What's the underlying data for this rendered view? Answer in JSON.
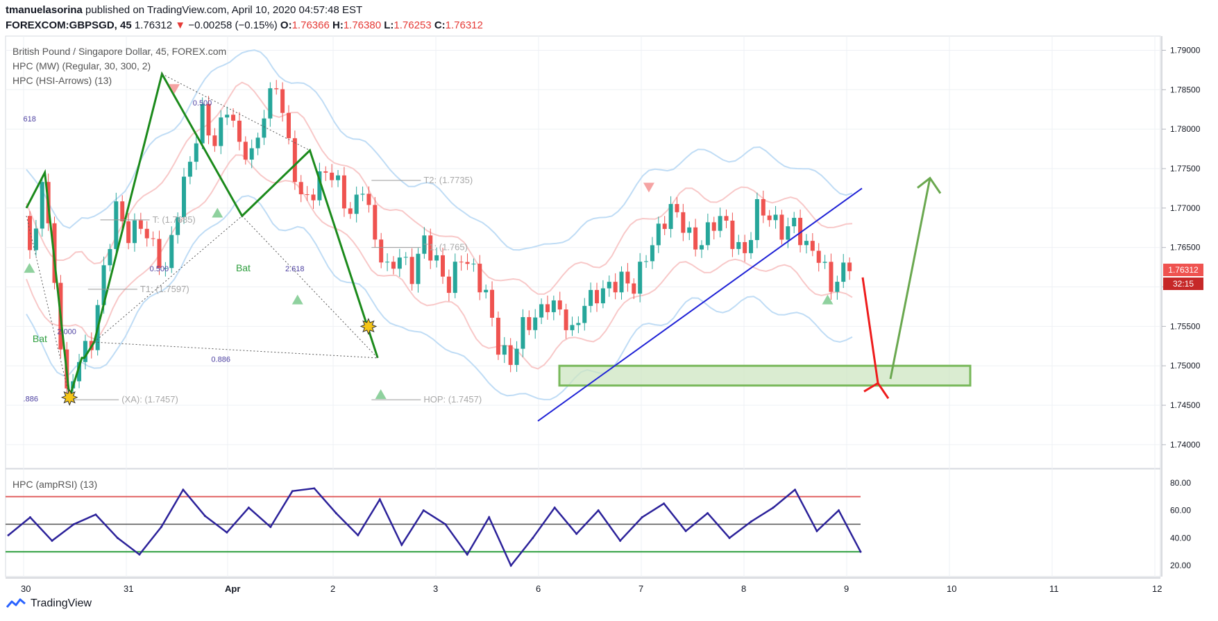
{
  "header": {
    "author": "tmanuelasorina",
    "published_text": "published on TradingView.com, April 10, 2020 04:57:48 EST",
    "symbol": "FOREXCOM:GBPSGD, 45",
    "last": "1.76312",
    "change_arrow": "▼",
    "change": "−0.00258 (−0.15%)",
    "o_label": "O:",
    "o": "1.76366",
    "h_label": "H:",
    "h": "1.76380",
    "l_label": "L:",
    "l": "1.76253",
    "c_label": "C:",
    "c": "1.76312"
  },
  "legend": {
    "line1": "British Pound / Singapore Dollar, 45, FOREX.com",
    "line2": "HPC (MW) (Regular, 30, 300, 2)",
    "line3": "HPC (HSI-Arrows) (13)",
    "rsi": "HPC (ampRSI) (13)"
  },
  "price_tag": {
    "price": "1.76312",
    "countdown": "32:15"
  },
  "footer": {
    "brand": "TradingView"
  },
  "colors": {
    "up": "#26a69a",
    "down": "#ef5350",
    "pattern": "#1b8a1b",
    "trendline": "#1f22d6",
    "zone": "#78b85a",
    "forecast_down": "#ee1c1c",
    "forecast_up": "#6aa84f",
    "rsi_line": "#2c229a"
  },
  "chart_data": [
    {
      "type": "candlestick",
      "title": "British Pound / Singapore Dollar, 45, FOREX.com",
      "x_tick_labels": [
        "30",
        "31",
        "Apr",
        "2",
        "3",
        "6",
        "7",
        "8",
        "9",
        "10",
        "11",
        "12"
      ],
      "y_tick_labels": [
        "1.79000",
        "1.78500",
        "1.78000",
        "1.77500",
        "1.77000",
        "1.76500",
        "1.76000",
        "1.75500",
        "1.75000",
        "1.74500",
        "1.74000"
      ],
      "ylim": [
        1.737,
        1.7918
      ],
      "close_path": [
        [
          0,
          1.769
        ],
        [
          1.5,
          1.7625
        ],
        [
          3,
          1.7745
        ],
        [
          7,
          1.746
        ],
        [
          9,
          1.751
        ],
        [
          11,
          1.753
        ],
        [
          13,
          1.762
        ],
        [
          15,
          1.77
        ],
        [
          17,
          1.7665
        ],
        [
          19,
          1.768
        ],
        [
          21,
          1.765
        ],
        [
          23,
          1.762
        ],
        [
          25,
          1.77
        ],
        [
          27,
          1.776
        ],
        [
          29,
          1.782
        ],
        [
          31,
          1.778
        ],
        [
          33,
          1.783
        ],
        [
          35,
          1.778
        ],
        [
          37,
          1.7765
        ],
        [
          39,
          1.782
        ],
        [
          41,
          1.786
        ],
        [
          43,
          1.778
        ],
        [
          45,
          1.771
        ],
        [
          47,
          1.772
        ],
        [
          49,
          1.775
        ],
        [
          51,
          1.773
        ],
        [
          53,
          1.769
        ],
        [
          55,
          1.773
        ],
        [
          57,
          1.766
        ],
        [
          59,
          1.762
        ],
        [
          61,
          1.764
        ],
        [
          63,
          1.7615
        ],
        [
          65,
          1.766
        ],
        [
          67,
          1.763
        ],
        [
          69,
          1.76
        ],
        [
          71,
          1.764
        ],
        [
          73,
          1.762
        ],
        [
          75,
          1.759
        ],
        [
          77,
          1.7525
        ],
        [
          79,
          1.7505
        ],
        [
          81,
          1.755
        ],
        [
          83,
          1.756
        ],
        [
          85,
          1.758
        ],
        [
          87,
          1.757
        ],
        [
          89,
          1.754
        ],
        [
          91,
          1.758
        ],
        [
          93,
          1.759
        ],
        [
          95,
          1.76
        ],
        [
          97,
          1.761
        ],
        [
          99,
          1.76
        ],
        [
          101,
          1.764
        ],
        [
          103,
          1.767
        ],
        [
          105,
          1.77
        ],
        [
          107,
          1.768
        ],
        [
          109,
          1.765
        ],
        [
          111,
          1.767
        ],
        [
          113,
          1.769
        ],
        [
          115,
          1.766
        ],
        [
          117,
          1.764
        ],
        [
          119,
          1.77
        ],
        [
          121,
          1.769
        ],
        [
          123,
          1.767
        ],
        [
          125,
          1.768
        ],
        [
          127,
          1.765
        ],
        [
          129,
          1.764
        ],
        [
          131,
          1.76
        ],
        [
          133,
          1.762
        ],
        [
          134,
          1.7631
        ]
      ],
      "harmonic_patterns": [
        {
          "name": "Bat",
          "points": [
            [
              0,
              1.77
            ],
            [
              3,
              1.7745
            ],
            [
              7,
              1.746
            ],
            [
              9,
              1.751
            ],
            [
              9.4,
              1.751
            ],
            [
              11,
              1.753
            ],
            [
              22,
              1.787
            ],
            [
              35,
              1.769
            ],
            [
              46,
              1.7773
            ],
            [
              57,
              1.751
            ]
          ],
          "ratios": [
            "0.500",
            "0.886",
            "2.618",
            "0.500",
            "2.000",
            "618",
            ".886"
          ],
          "targets": [
            {
              "label": "T2: (1.7735)",
              "value": 1.7735
            },
            {
              "label": "T1: (1.765)",
              "value": 1.765
            },
            {
              "label": "T1: (1.7597)",
              "value": 1.7597
            },
            {
              "label": "T: (1.7685)",
              "value": 1.7685
            },
            {
              "label": "(XA): (1.7457)",
              "value": 1.7457
            },
            {
              "label": "HOP: (1.7457)",
              "value": 1.7457
            }
          ]
        }
      ],
      "annotations": {
        "support_zone": [
          1.7475,
          1.75
        ],
        "trendline": [
          [
            1.743
          ],
          [
            1.7725
          ]
        ],
        "forecast": {
          "dip_to": 1.7478,
          "rise_to": 1.7738
        }
      }
    },
    {
      "type": "line",
      "title": "HPC (ampRSI) (13)",
      "y_tick_labels": [
        "80.00",
        "60.00",
        "40.00",
        "20.00"
      ],
      "ylim": [
        15,
        87
      ],
      "levels": {
        "overbought": 70,
        "mid": 50,
        "oversold": 30
      },
      "x": [
        0,
        5,
        10,
        15,
        20,
        25,
        30,
        35,
        40,
        45,
        50,
        55,
        60,
        65,
        70,
        75,
        80,
        85,
        90,
        95,
        100,
        105,
        110,
        115,
        120,
        125,
        130,
        135,
        140,
        145,
        150,
        155,
        160,
        165,
        170,
        175,
        180,
        185,
        190,
        195
      ],
      "values": [
        42,
        55,
        38,
        50,
        57,
        40,
        28,
        48,
        75,
        56,
        44,
        62,
        48,
        74,
        76,
        58,
        42,
        68,
        35,
        60,
        50,
        28,
        55,
        20,
        40,
        62,
        43,
        60,
        38,
        55,
        65,
        45,
        58,
        40,
        52,
        62,
        75,
        45,
        60,
        30
      ]
    }
  ]
}
